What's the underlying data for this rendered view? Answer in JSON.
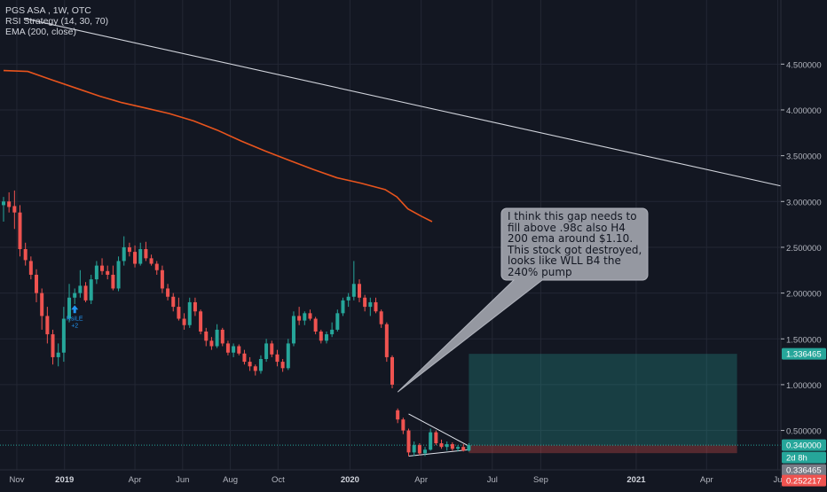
{
  "legend": {
    "symbol": "PGS ASA , 1W, OTC",
    "strategy": "RSI Strategy (14, 30, 70)",
    "ema": "EMA (200, close)"
  },
  "annotation": {
    "text": "I think this gap needs to fill above .98c also H4 200 ema around $1.10. This stock got destroyed, looks like WLL B4 the 240% pump"
  },
  "signal": {
    "label": "RsiLE",
    "sub": "+2",
    "color": "#2196f3"
  },
  "colors": {
    "background": "#131722",
    "up": "#26a69a",
    "down": "#ef5350",
    "ema": "#e8541d",
    "trendline": "#d1d4dc",
    "grid": "#232734",
    "axis_text": "#b2b5be"
  },
  "price_badges": [
    {
      "price": 1.336465,
      "text": "1.336465",
      "color": "#26a69a"
    },
    {
      "price": 0.34,
      "text": "0.340000",
      "color": "#26a69a"
    },
    {
      "price": 0.301,
      "text": "2d 8h",
      "color": "#26a69a"
    },
    {
      "price": 0.336465,
      "text": "0.336465",
      "color": "#787b86"
    },
    {
      "price": 0.252217,
      "text": "0.252217",
      "color": "#ef5350"
    }
  ],
  "position_tool": {
    "start": "2020-06-01",
    "end": "2021-05-10",
    "entry": 0.336465,
    "target": 1.336465,
    "stop": 0.252217
  },
  "chart_data": {
    "type": "candlestick",
    "title": "PGS ASA , 1W, OTC",
    "x_range": [
      "2018-10-15",
      "2021-07-05"
    ],
    "y_range": [
      0.07,
      5.2
    ],
    "grid": true,
    "y_ticks": [
      {
        "value": 0.5,
        "label": "0.500000"
      },
      {
        "value": 1.0,
        "label": "1.000000"
      },
      {
        "value": 1.5,
        "label": "1.500000"
      },
      {
        "value": 2.0,
        "label": "2.000000"
      },
      {
        "value": 2.5,
        "label": "2.500000"
      },
      {
        "value": 3.0,
        "label": "3.000000"
      },
      {
        "value": 3.5,
        "label": "3.500000"
      },
      {
        "value": 4.0,
        "label": "4.000000"
      },
      {
        "value": 4.5,
        "label": "4.500000"
      }
    ],
    "x_ticks": [
      {
        "date": "2018-11-01",
        "label": "Nov",
        "bold": false
      },
      {
        "date": "2019-01-01",
        "label": "2019",
        "bold": true
      },
      {
        "date": "2019-04-01",
        "label": "Apr",
        "bold": false
      },
      {
        "date": "2019-06-01",
        "label": "Jun",
        "bold": false
      },
      {
        "date": "2019-08-01",
        "label": "Aug",
        "bold": false
      },
      {
        "date": "2019-10-01",
        "label": "Oct",
        "bold": false
      },
      {
        "date": "2020-01-01",
        "label": "2020",
        "bold": true
      },
      {
        "date": "2020-04-01",
        "label": "Apr",
        "bold": false
      },
      {
        "date": "2020-07-01",
        "label": "Jul",
        "bold": false
      },
      {
        "date": "2020-09-01",
        "label": "Sep",
        "bold": false
      },
      {
        "date": "2021-01-01",
        "label": "2021",
        "bold": true
      },
      {
        "date": "2021-04-01",
        "label": "Apr",
        "bold": false
      },
      {
        "date": "2021-07-01",
        "label": "Ju",
        "bold": false
      }
    ],
    "candles": [
      {
        "date": "2018-10-15",
        "o": 2.96,
        "h": 3.05,
        "l": 2.78,
        "c": 3.0
      },
      {
        "date": "2018-10-22",
        "o": 3.0,
        "h": 3.1,
        "l": 2.88,
        "c": 2.94
      },
      {
        "date": "2018-10-29",
        "o": 2.95,
        "h": 3.12,
        "l": 2.7,
        "c": 2.88
      },
      {
        "date": "2018-11-05",
        "o": 2.88,
        "h": 2.96,
        "l": 2.4,
        "c": 2.48
      },
      {
        "date": "2018-11-12",
        "o": 2.48,
        "h": 2.55,
        "l": 2.3,
        "c": 2.36
      },
      {
        "date": "2018-11-19",
        "o": 2.35,
        "h": 2.4,
        "l": 2.15,
        "c": 2.2
      },
      {
        "date": "2018-11-26",
        "o": 2.2,
        "h": 2.26,
        "l": 1.9,
        "c": 2.0
      },
      {
        "date": "2018-12-03",
        "o": 2.0,
        "h": 2.05,
        "l": 1.6,
        "c": 1.75
      },
      {
        "date": "2018-12-10",
        "o": 1.75,
        "h": 1.85,
        "l": 1.45,
        "c": 1.55
      },
      {
        "date": "2018-12-17",
        "o": 1.55,
        "h": 1.6,
        "l": 1.22,
        "c": 1.3
      },
      {
        "date": "2018-12-24",
        "o": 1.3,
        "h": 1.45,
        "l": 1.2,
        "c": 1.35
      },
      {
        "date": "2018-12-31",
        "o": 1.35,
        "h": 1.85,
        "l": 1.25,
        "c": 1.72
      },
      {
        "date": "2019-01-07",
        "o": 1.72,
        "h": 2.1,
        "l": 1.68,
        "c": 1.95
      },
      {
        "date": "2019-01-14",
        "o": 1.95,
        "h": 2.05,
        "l": 1.88,
        "c": 2.0
      },
      {
        "date": "2019-01-21",
        "o": 2.0,
        "h": 2.25,
        "l": 1.95,
        "c": 2.08
      },
      {
        "date": "2019-01-28",
        "o": 2.08,
        "h": 2.12,
        "l": 1.9,
        "c": 1.92
      },
      {
        "date": "2019-02-04",
        "o": 1.92,
        "h": 2.2,
        "l": 1.88,
        "c": 2.15
      },
      {
        "date": "2019-02-11",
        "o": 2.15,
        "h": 2.35,
        "l": 2.1,
        "c": 2.3
      },
      {
        "date": "2019-02-18",
        "o": 2.3,
        "h": 2.38,
        "l": 2.2,
        "c": 2.24
      },
      {
        "date": "2019-02-25",
        "o": 2.24,
        "h": 2.3,
        "l": 2.15,
        "c": 2.2
      },
      {
        "date": "2019-03-04",
        "o": 2.2,
        "h": 2.3,
        "l": 2.03,
        "c": 2.05
      },
      {
        "date": "2019-03-11",
        "o": 2.05,
        "h": 2.4,
        "l": 2.02,
        "c": 2.35
      },
      {
        "date": "2019-03-18",
        "o": 2.35,
        "h": 2.62,
        "l": 2.3,
        "c": 2.5
      },
      {
        "date": "2019-03-25",
        "o": 2.5,
        "h": 2.55,
        "l": 2.4,
        "c": 2.45
      },
      {
        "date": "2019-04-01",
        "o": 2.45,
        "h": 2.52,
        "l": 2.28,
        "c": 2.32
      },
      {
        "date": "2019-04-08",
        "o": 2.32,
        "h": 2.55,
        "l": 2.3,
        "c": 2.48
      },
      {
        "date": "2019-04-15",
        "o": 2.48,
        "h": 2.56,
        "l": 2.35,
        "c": 2.38
      },
      {
        "date": "2019-04-22",
        "o": 2.38,
        "h": 2.42,
        "l": 2.3,
        "c": 2.32
      },
      {
        "date": "2019-04-29",
        "o": 2.32,
        "h": 2.35,
        "l": 2.2,
        "c": 2.25
      },
      {
        "date": "2019-05-06",
        "o": 2.25,
        "h": 2.3,
        "l": 2.0,
        "c": 2.05
      },
      {
        "date": "2019-05-13",
        "o": 2.05,
        "h": 2.1,
        "l": 1.92,
        "c": 1.96
      },
      {
        "date": "2019-05-20",
        "o": 1.96,
        "h": 2.0,
        "l": 1.8,
        "c": 1.85
      },
      {
        "date": "2019-05-27",
        "o": 1.85,
        "h": 1.95,
        "l": 1.7,
        "c": 1.72
      },
      {
        "date": "2019-06-03",
        "o": 1.72,
        "h": 1.78,
        "l": 1.6,
        "c": 1.65
      },
      {
        "date": "2019-06-10",
        "o": 1.65,
        "h": 1.95,
        "l": 1.62,
        "c": 1.9
      },
      {
        "date": "2019-06-17",
        "o": 1.9,
        "h": 1.95,
        "l": 1.75,
        "c": 1.8
      },
      {
        "date": "2019-06-24",
        "o": 1.8,
        "h": 1.82,
        "l": 1.55,
        "c": 1.58
      },
      {
        "date": "2019-07-01",
        "o": 1.58,
        "h": 1.62,
        "l": 1.42,
        "c": 1.48
      },
      {
        "date": "2019-07-08",
        "o": 1.48,
        "h": 1.52,
        "l": 1.38,
        "c": 1.42
      },
      {
        "date": "2019-07-15",
        "o": 1.42,
        "h": 1.66,
        "l": 1.4,
        "c": 1.6
      },
      {
        "date": "2019-07-22",
        "o": 1.6,
        "h": 1.62,
        "l": 1.42,
        "c": 1.45
      },
      {
        "date": "2019-07-29",
        "o": 1.45,
        "h": 1.48,
        "l": 1.32,
        "c": 1.35
      },
      {
        "date": "2019-08-05",
        "o": 1.35,
        "h": 1.45,
        "l": 1.3,
        "c": 1.42
      },
      {
        "date": "2019-08-12",
        "o": 1.42,
        "h": 1.44,
        "l": 1.32,
        "c": 1.34
      },
      {
        "date": "2019-08-19",
        "o": 1.34,
        "h": 1.38,
        "l": 1.22,
        "c": 1.25
      },
      {
        "date": "2019-08-26",
        "o": 1.25,
        "h": 1.3,
        "l": 1.15,
        "c": 1.2
      },
      {
        "date": "2019-09-02",
        "o": 1.2,
        "h": 1.22,
        "l": 1.1,
        "c": 1.15
      },
      {
        "date": "2019-09-09",
        "o": 1.15,
        "h": 1.32,
        "l": 1.12,
        "c": 1.28
      },
      {
        "date": "2019-09-16",
        "o": 1.28,
        "h": 1.5,
        "l": 1.25,
        "c": 1.45
      },
      {
        "date": "2019-09-23",
        "o": 1.45,
        "h": 1.48,
        "l": 1.3,
        "c": 1.33
      },
      {
        "date": "2019-09-30",
        "o": 1.33,
        "h": 1.38,
        "l": 1.2,
        "c": 1.25
      },
      {
        "date": "2019-10-07",
        "o": 1.25,
        "h": 1.28,
        "l": 1.14,
        "c": 1.18
      },
      {
        "date": "2019-10-14",
        "o": 1.18,
        "h": 1.5,
        "l": 1.16,
        "c": 1.45
      },
      {
        "date": "2019-10-21",
        "o": 1.45,
        "h": 1.8,
        "l": 1.42,
        "c": 1.75
      },
      {
        "date": "2019-10-28",
        "o": 1.75,
        "h": 1.85,
        "l": 1.65,
        "c": 1.7
      },
      {
        "date": "2019-11-04",
        "o": 1.7,
        "h": 1.8,
        "l": 1.65,
        "c": 1.78
      },
      {
        "date": "2019-11-11",
        "o": 1.78,
        "h": 1.82,
        "l": 1.7,
        "c": 1.72
      },
      {
        "date": "2019-11-18",
        "o": 1.72,
        "h": 1.74,
        "l": 1.55,
        "c": 1.58
      },
      {
        "date": "2019-11-25",
        "o": 1.58,
        "h": 1.6,
        "l": 1.45,
        "c": 1.48
      },
      {
        "date": "2019-12-02",
        "o": 1.48,
        "h": 1.58,
        "l": 1.45,
        "c": 1.55
      },
      {
        "date": "2019-12-09",
        "o": 1.55,
        "h": 1.68,
        "l": 1.52,
        "c": 1.6
      },
      {
        "date": "2019-12-16",
        "o": 1.6,
        "h": 1.82,
        "l": 1.58,
        "c": 1.78
      },
      {
        "date": "2019-12-23",
        "o": 1.78,
        "h": 1.95,
        "l": 1.75,
        "c": 1.92
      },
      {
        "date": "2019-12-30",
        "o": 1.92,
        "h": 2.0,
        "l": 1.85,
        "c": 1.96
      },
      {
        "date": "2020-01-06",
        "o": 1.96,
        "h": 2.35,
        "l": 1.92,
        "c": 2.1
      },
      {
        "date": "2020-01-13",
        "o": 2.1,
        "h": 2.15,
        "l": 1.9,
        "c": 1.95
      },
      {
        "date": "2020-01-20",
        "o": 1.95,
        "h": 1.98,
        "l": 1.8,
        "c": 1.85
      },
      {
        "date": "2020-01-27",
        "o": 1.85,
        "h": 1.95,
        "l": 1.75,
        "c": 1.9
      },
      {
        "date": "2020-02-03",
        "o": 1.9,
        "h": 1.95,
        "l": 1.78,
        "c": 1.8
      },
      {
        "date": "2020-02-10",
        "o": 1.8,
        "h": 1.82,
        "l": 1.62,
        "c": 1.66
      },
      {
        "date": "2020-02-17",
        "o": 1.66,
        "h": 1.68,
        "l": 1.25,
        "c": 1.3
      },
      {
        "date": "2020-02-24",
        "o": 1.3,
        "h": 1.32,
        "l": 0.96,
        "c": 1.0
      },
      {
        "date": "2020-03-02",
        "o": 0.72,
        "h": 0.74,
        "l": 0.58,
        "c": 0.62
      },
      {
        "date": "2020-03-09",
        "o": 0.62,
        "h": 0.64,
        "l": 0.46,
        "c": 0.5
      },
      {
        "date": "2020-03-16",
        "o": 0.5,
        "h": 0.52,
        "l": 0.22,
        "c": 0.26
      },
      {
        "date": "2020-03-23",
        "o": 0.26,
        "h": 0.38,
        "l": 0.22,
        "c": 0.34
      },
      {
        "date": "2020-03-30",
        "o": 0.34,
        "h": 0.36,
        "l": 0.23,
        "c": 0.25
      },
      {
        "date": "2020-04-06",
        "o": 0.25,
        "h": 0.32,
        "l": 0.22,
        "c": 0.29
      },
      {
        "date": "2020-04-13",
        "o": 0.29,
        "h": 0.52,
        "l": 0.28,
        "c": 0.48
      },
      {
        "date": "2020-04-20",
        "o": 0.48,
        "h": 0.5,
        "l": 0.34,
        "c": 0.36
      },
      {
        "date": "2020-04-27",
        "o": 0.36,
        "h": 0.4,
        "l": 0.3,
        "c": 0.32
      },
      {
        "date": "2020-05-04",
        "o": 0.32,
        "h": 0.38,
        "l": 0.28,
        "c": 0.35
      },
      {
        "date": "2020-05-11",
        "o": 0.35,
        "h": 0.37,
        "l": 0.28,
        "c": 0.3
      },
      {
        "date": "2020-05-18",
        "o": 0.3,
        "h": 0.34,
        "l": 0.27,
        "c": 0.32
      },
      {
        "date": "2020-05-25",
        "o": 0.32,
        "h": 0.35,
        "l": 0.27,
        "c": 0.28
      },
      {
        "date": "2020-06-01",
        "o": 0.28,
        "h": 0.36,
        "l": 0.27,
        "c": 0.34
      }
    ],
    "ema_200": [
      {
        "date": "2018-10-15",
        "v": 4.43
      },
      {
        "date": "2018-11-15",
        "v": 4.42
      },
      {
        "date": "2018-12-15",
        "v": 4.33
      },
      {
        "date": "2019-01-15",
        "v": 4.24
      },
      {
        "date": "2019-02-15",
        "v": 4.15
      },
      {
        "date": "2019-03-15",
        "v": 4.08
      },
      {
        "date": "2019-04-15",
        "v": 4.02
      },
      {
        "date": "2019-05-15",
        "v": 3.96
      },
      {
        "date": "2019-06-15",
        "v": 3.88
      },
      {
        "date": "2019-07-15",
        "v": 3.78
      },
      {
        "date": "2019-08-15",
        "v": 3.66
      },
      {
        "date": "2019-09-15",
        "v": 3.55
      },
      {
        "date": "2019-10-15",
        "v": 3.45
      },
      {
        "date": "2019-11-15",
        "v": 3.35
      },
      {
        "date": "2019-12-15",
        "v": 3.26
      },
      {
        "date": "2020-01-15",
        "v": 3.2
      },
      {
        "date": "2020-02-15",
        "v": 3.13
      },
      {
        "date": "2020-03-01",
        "v": 3.05
      },
      {
        "date": "2020-03-15",
        "v": 2.92
      },
      {
        "date": "2020-04-01",
        "v": 2.84
      },
      {
        "date": "2020-04-15",
        "v": 2.78
      }
    ],
    "trendline": {
      "start": {
        "date": "2018-11-10",
        "v": 5.0
      },
      "end": {
        "date": "2021-07-05",
        "v": 3.17
      }
    },
    "triangle": {
      "upper": [
        {
          "date": "2020-03-16",
          "v": 0.68
        },
        {
          "date": "2020-06-01",
          "v": 0.33
        }
      ],
      "lower": [
        {
          "date": "2020-03-16",
          "v": 0.22
        },
        {
          "date": "2020-06-01",
          "v": 0.29
        }
      ]
    },
    "callout_pointer": {
      "date": "2020-03-02",
      "v": 0.92
    }
  }
}
